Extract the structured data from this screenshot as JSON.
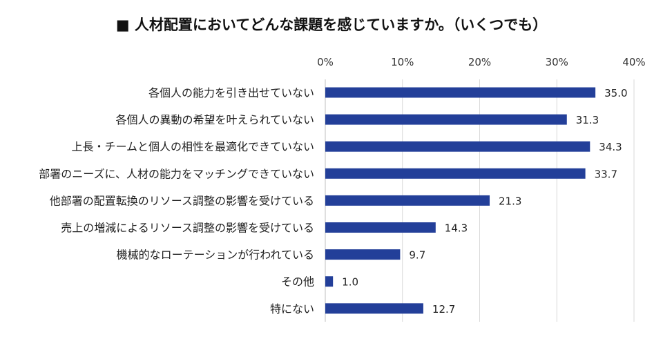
{
  "chart_data": {
    "type": "bar",
    "orientation": "horizontal",
    "title": "■ 人材配置においてどんな課題を感じていますか。（いくつでも）",
    "categories": [
      "各個人の能力を引き出せていない",
      "各個人の異動の希望を叶えられていない",
      "上長・チームと個人の相性を最適化できていない",
      "部署のニーズに、人材の能力をマッチングできていない",
      "他部署の配置転換のリソース調整の影響を受けている",
      "売上の増減によるリソース調整の影響を受けている",
      "機械的なローテーションが行われている",
      "その他",
      "特にない"
    ],
    "values": [
      35.0,
      31.3,
      34.3,
      33.7,
      21.3,
      14.3,
      9.7,
      1.0,
      12.7
    ],
    "value_labels": [
      "35.0",
      "31.3",
      "34.3",
      "33.7",
      "21.3",
      "14.3",
      "9.7",
      "1.0",
      "12.7"
    ],
    "xlim": [
      0,
      40
    ],
    "xticks": [
      0,
      10,
      20,
      30,
      40
    ],
    "xtick_labels": [
      "0%",
      "10%",
      "20%",
      "30%",
      "40%"
    ],
    "axis_position": "top",
    "grid": true,
    "bar_color": "#233f99",
    "grid_color": "#d9d9d9"
  }
}
